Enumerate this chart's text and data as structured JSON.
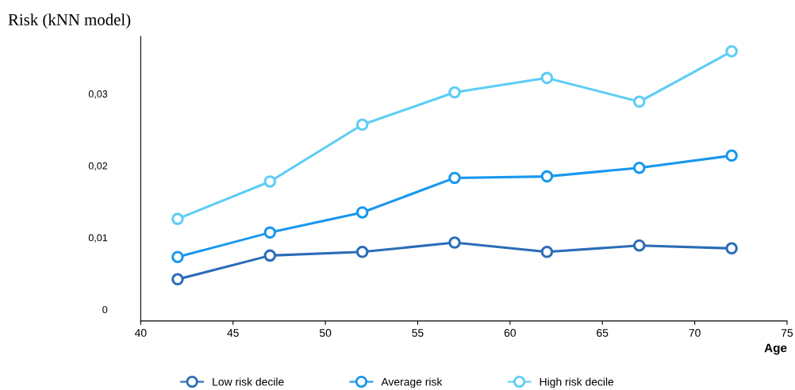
{
  "chart_data": {
    "type": "line",
    "title": "Risk (kNN model)",
    "xlabel": "Age",
    "x": [
      42,
      47,
      52,
      57,
      62,
      67,
      72
    ],
    "series": [
      {
        "name": "Low risk decile",
        "color": "#2b6cb8",
        "values": [
          0.0042,
          0.0075,
          0.008,
          0.0093,
          0.008,
          0.0089,
          0.0085
        ]
      },
      {
        "name": "Average risk",
        "color": "#1897ee",
        "values": [
          0.0073,
          0.0107,
          0.0135,
          0.0183,
          0.0185,
          0.0197,
          0.0214
        ]
      },
      {
        "name": "High risk decile",
        "color": "#5ccdf5",
        "values": [
          0.0126,
          0.0178,
          0.0257,
          0.0302,
          0.0322,
          0.0289,
          0.0359
        ]
      }
    ],
    "xlim": [
      40,
      75
    ],
    "xticks": [
      40,
      45,
      50,
      55,
      60,
      65,
      70,
      75
    ],
    "ylim": [
      -0.0016,
      0.038
    ],
    "yticks": [
      {
        "value": 0,
        "label": "0"
      },
      {
        "value": 0.01,
        "label": "0,01"
      },
      {
        "value": 0.02,
        "label": "0,02"
      },
      {
        "value": 0.03,
        "label": "0,03"
      }
    ],
    "marker": "circle",
    "legend": "bottom",
    "grid": false
  }
}
